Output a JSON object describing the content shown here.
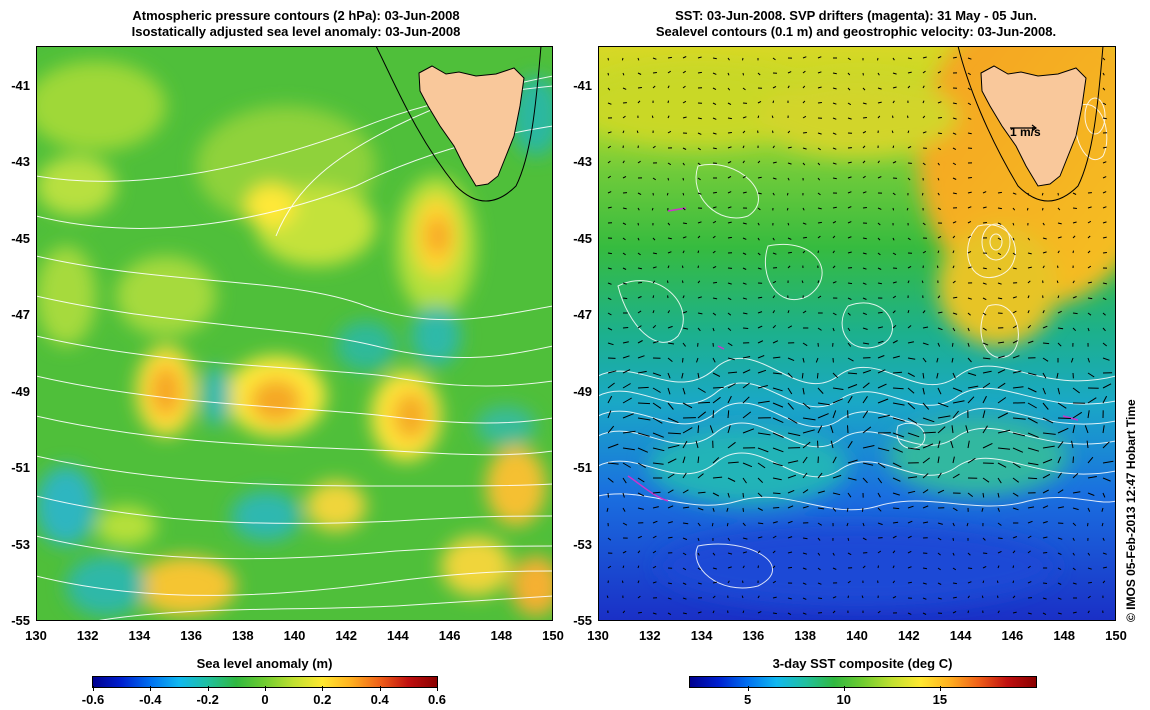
{
  "left_panel": {
    "title_line1": "Atmospheric pressure contours (2 hPa): 03-Jun-2008",
    "title_line2": "Isostatically adjusted sea level anomaly: 03-Jun-2008",
    "x_ticks": [
      "130",
      "132",
      "134",
      "136",
      "138",
      "140",
      "142",
      "144",
      "146",
      "148",
      "150"
    ],
    "y_ticks": [
      "-41",
      "-43",
      "-45",
      "-47",
      "-49",
      "-51",
      "-53",
      "-55"
    ],
    "colorbar": {
      "label": "Sea level anomaly (m)",
      "ticks": [
        "-0.6",
        "-0.4",
        "-0.2",
        "0",
        "0.2",
        "0.4",
        "0.6"
      ],
      "range": [
        -0.6,
        0.6
      ]
    }
  },
  "right_panel": {
    "title_line1": "SST: 03-Jun-2008. SVP drifters (magenta): 31 May - 05 Jun.",
    "title_line2": "Sealevel contours (0.1 m) and geostrophic velocity: 03-Jun-2008.",
    "x_ticks": [
      "130",
      "132",
      "134",
      "136",
      "138",
      "140",
      "142",
      "144",
      "146",
      "148",
      "150"
    ],
    "y_ticks": [
      "-41",
      "-43",
      "-45",
      "-47",
      "-49",
      "-51",
      "-53",
      "-55"
    ],
    "velocity_scale_label": "1 m/s",
    "colorbar": {
      "label": "3-day SST composite (deg C)",
      "ticks": [
        "5",
        "10",
        "15"
      ],
      "range": [
        2,
        20
      ]
    }
  },
  "credit": "© IMOS 05-Feb-2013 12:47 Hobart Time",
  "colors": {
    "land": "#f9c89b",
    "contour": "#ffffff",
    "drifter": "#cc33cc",
    "vector": "#000000"
  }
}
